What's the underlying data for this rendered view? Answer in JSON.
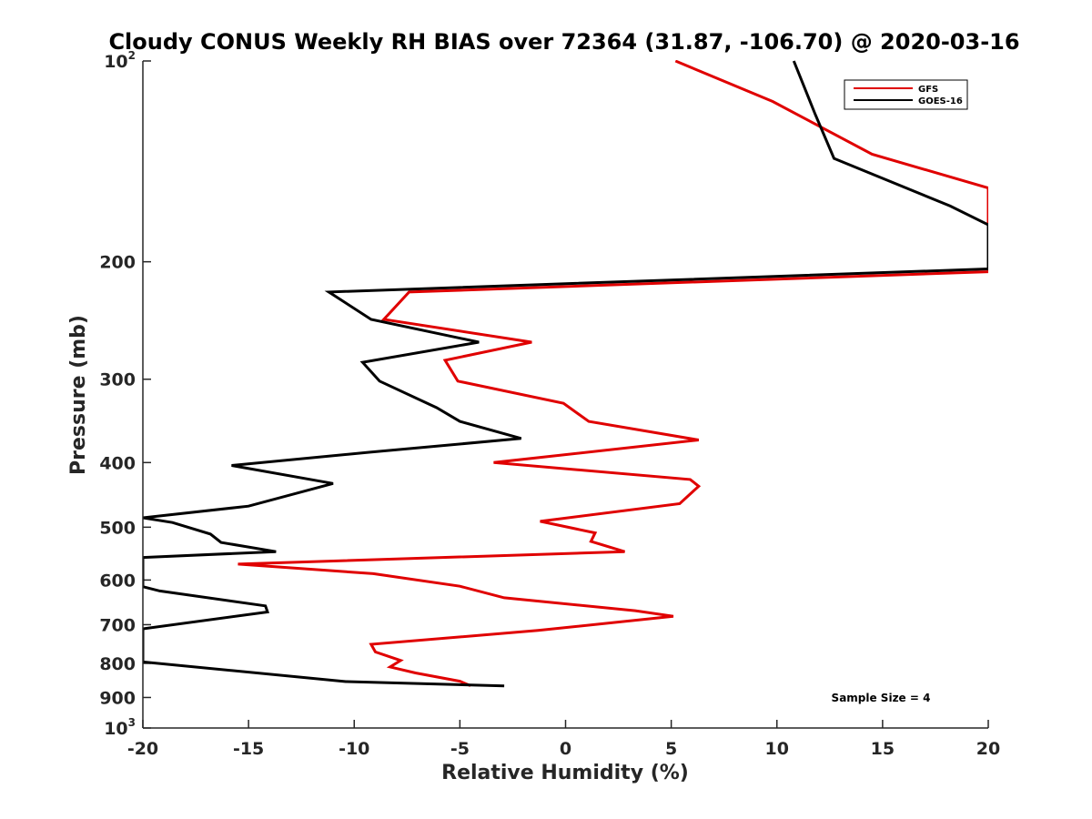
{
  "chart_data": {
    "type": "line",
    "title": "Cloudy CONUS Weekly RH BIAS over 72364 (31.87, -106.70) @ 2020-03-16",
    "xlabel": "Relative Humidity (%)",
    "ylabel": "Pressure (mb)",
    "xlim": [
      -20,
      20
    ],
    "ylim": [
      100,
      1000
    ],
    "y_scale": "log",
    "y_reversed": true,
    "x_ticks": [
      "-20",
      "-15",
      "-10",
      "-5",
      "0",
      "5",
      "10",
      "15",
      "20"
    ],
    "y_ticks": [
      {
        "value": 100,
        "base": "10",
        "exp": "2"
      },
      {
        "value": 200,
        "label": "200"
      },
      {
        "value": 300,
        "label": "300"
      },
      {
        "value": 400,
        "label": "400"
      },
      {
        "value": 500,
        "label": "500"
      },
      {
        "value": 600,
        "label": "600"
      },
      {
        "value": 700,
        "label": "700"
      },
      {
        "value": 800,
        "label": "800"
      },
      {
        "value": 900,
        "label": "900"
      },
      {
        "value": 1000,
        "base": "10",
        "exp": "3"
      }
    ],
    "grid": false,
    "legend_position": "top-right",
    "annotation": "Sample Size = 4",
    "series": [
      {
        "name": "GFS",
        "color": "#e00000",
        "points": [
          [
            5.2,
            100
          ],
          [
            9.8,
            115
          ],
          [
            14.5,
            138
          ],
          [
            20,
            155
          ],
          [
            20,
            207
          ],
          [
            -7.4,
            222
          ],
          [
            -8.6,
            244
          ],
          [
            -1.6,
            264
          ],
          [
            -5.7,
            281
          ],
          [
            -5.1,
            302
          ],
          [
            -0.1,
            326
          ],
          [
            1.1,
            347
          ],
          [
            6.3,
            370
          ],
          [
            -3.4,
            400
          ],
          [
            5.9,
            424
          ],
          [
            6.3,
            434
          ],
          [
            5.4,
            461
          ],
          [
            -1.2,
            490
          ],
          [
            1.4,
            510
          ],
          [
            1.2,
            525
          ],
          [
            2.8,
            544
          ],
          [
            -15.5,
            568
          ],
          [
            -9.1,
            587
          ],
          [
            -5.0,
            613
          ],
          [
            -2.9,
            638
          ],
          [
            3.3,
            667
          ],
          [
            5.1,
            680
          ],
          [
            -1.3,
            714
          ],
          [
            -9.2,
            749
          ],
          [
            -9.0,
            769
          ],
          [
            -7.8,
            792
          ],
          [
            -8.3,
            810
          ],
          [
            -7.1,
            827
          ],
          [
            -5.0,
            851
          ],
          [
            -4.5,
            864
          ]
        ]
      },
      {
        "name": "GOES-16",
        "color": "#000000",
        "points": [
          [
            10.8,
            100
          ],
          [
            11.8,
            120
          ],
          [
            12.7,
            140
          ],
          [
            18.2,
            165
          ],
          [
            20,
            176
          ],
          [
            20,
            205
          ],
          [
            -11.2,
            222
          ],
          [
            -9.2,
            244
          ],
          [
            -4.1,
            264
          ],
          [
            -9.6,
            283
          ],
          [
            -8.8,
            302
          ],
          [
            -6.1,
            331
          ],
          [
            -5.0,
            347
          ],
          [
            -2.1,
            368
          ],
          [
            -9.3,
            386
          ],
          [
            -15.8,
            404
          ],
          [
            -11.0,
            430
          ],
          [
            -15.0,
            465
          ],
          [
            -20,
            484
          ],
          [
            -18.6,
            492
          ],
          [
            -16.8,
            512
          ],
          [
            -16.3,
            527
          ],
          [
            -13.7,
            544
          ],
          [
            -20,
            555
          ],
          [
            -20,
            614
          ],
          [
            -19.2,
            623
          ],
          [
            -14.2,
            656
          ],
          [
            -14.1,
            670
          ],
          [
            -20,
            710
          ],
          [
            -20,
            796
          ],
          [
            -10.4,
            852
          ],
          [
            -2.9,
            865
          ]
        ]
      }
    ]
  }
}
